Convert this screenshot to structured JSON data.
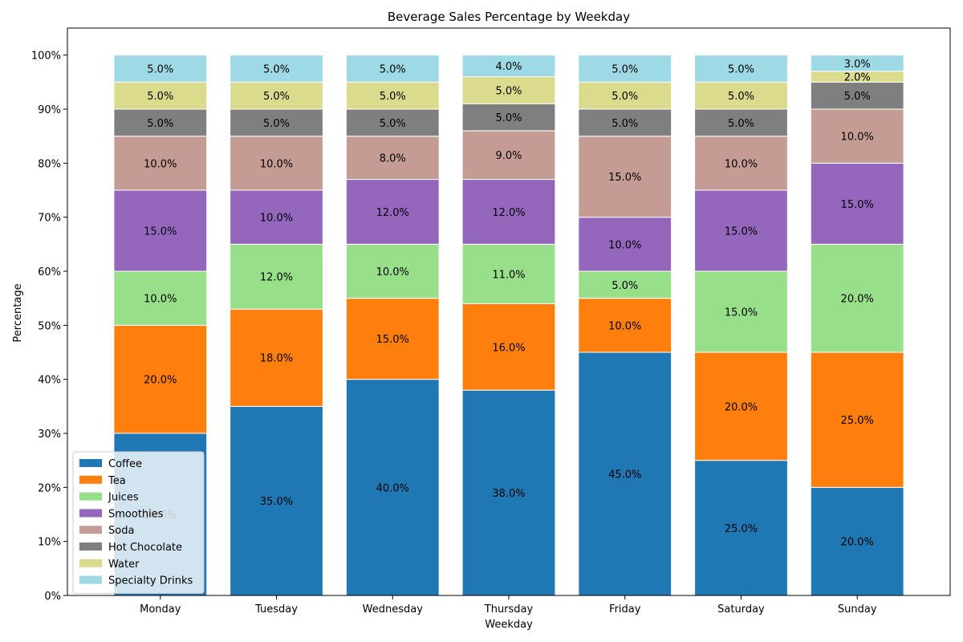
{
  "chart_data": {
    "type": "bar",
    "stacked": true,
    "title": "Beverage Sales Percentage by Weekday",
    "xlabel": "Weekday",
    "ylabel": "Percentage",
    "ylim": [
      0,
      105
    ],
    "yticks": [
      "0%",
      "10%",
      "20%",
      "30%",
      "40%",
      "50%",
      "60%",
      "70%",
      "80%",
      "90%",
      "100%"
    ],
    "legend_position": "lower-left",
    "grid": false,
    "categories": [
      "Monday",
      "Tuesday",
      "Wednesday",
      "Thursday",
      "Friday",
      "Saturday",
      "Sunday"
    ],
    "series": [
      {
        "name": "Coffee",
        "color": "#1f77b4",
        "values": [
          30,
          35,
          40,
          38,
          45,
          25,
          20
        ]
      },
      {
        "name": "Tea",
        "color": "#ff7f0e",
        "values": [
          20,
          18,
          15,
          16,
          10,
          20,
          25
        ]
      },
      {
        "name": "Juices",
        "color": "#98df8a",
        "values": [
          10,
          12,
          10,
          11,
          5,
          15,
          20
        ]
      },
      {
        "name": "Smoothies",
        "color": "#9467bd",
        "values": [
          15,
          10,
          12,
          12,
          10,
          15,
          15
        ]
      },
      {
        "name": "Soda",
        "color": "#c49c94",
        "values": [
          10,
          10,
          8,
          9,
          15,
          10,
          10
        ]
      },
      {
        "name": "Hot Chocolate",
        "color": "#7f7f7f",
        "values": [
          5,
          5,
          5,
          5,
          5,
          5,
          5
        ]
      },
      {
        "name": "Water",
        "color": "#dbdb8d",
        "values": [
          5,
          5,
          5,
          5,
          5,
          5,
          2
        ]
      },
      {
        "name": "Specialty Drinks",
        "color": "#9edae5",
        "values": [
          5,
          5,
          5,
          4,
          5,
          5,
          3
        ]
      }
    ]
  }
}
